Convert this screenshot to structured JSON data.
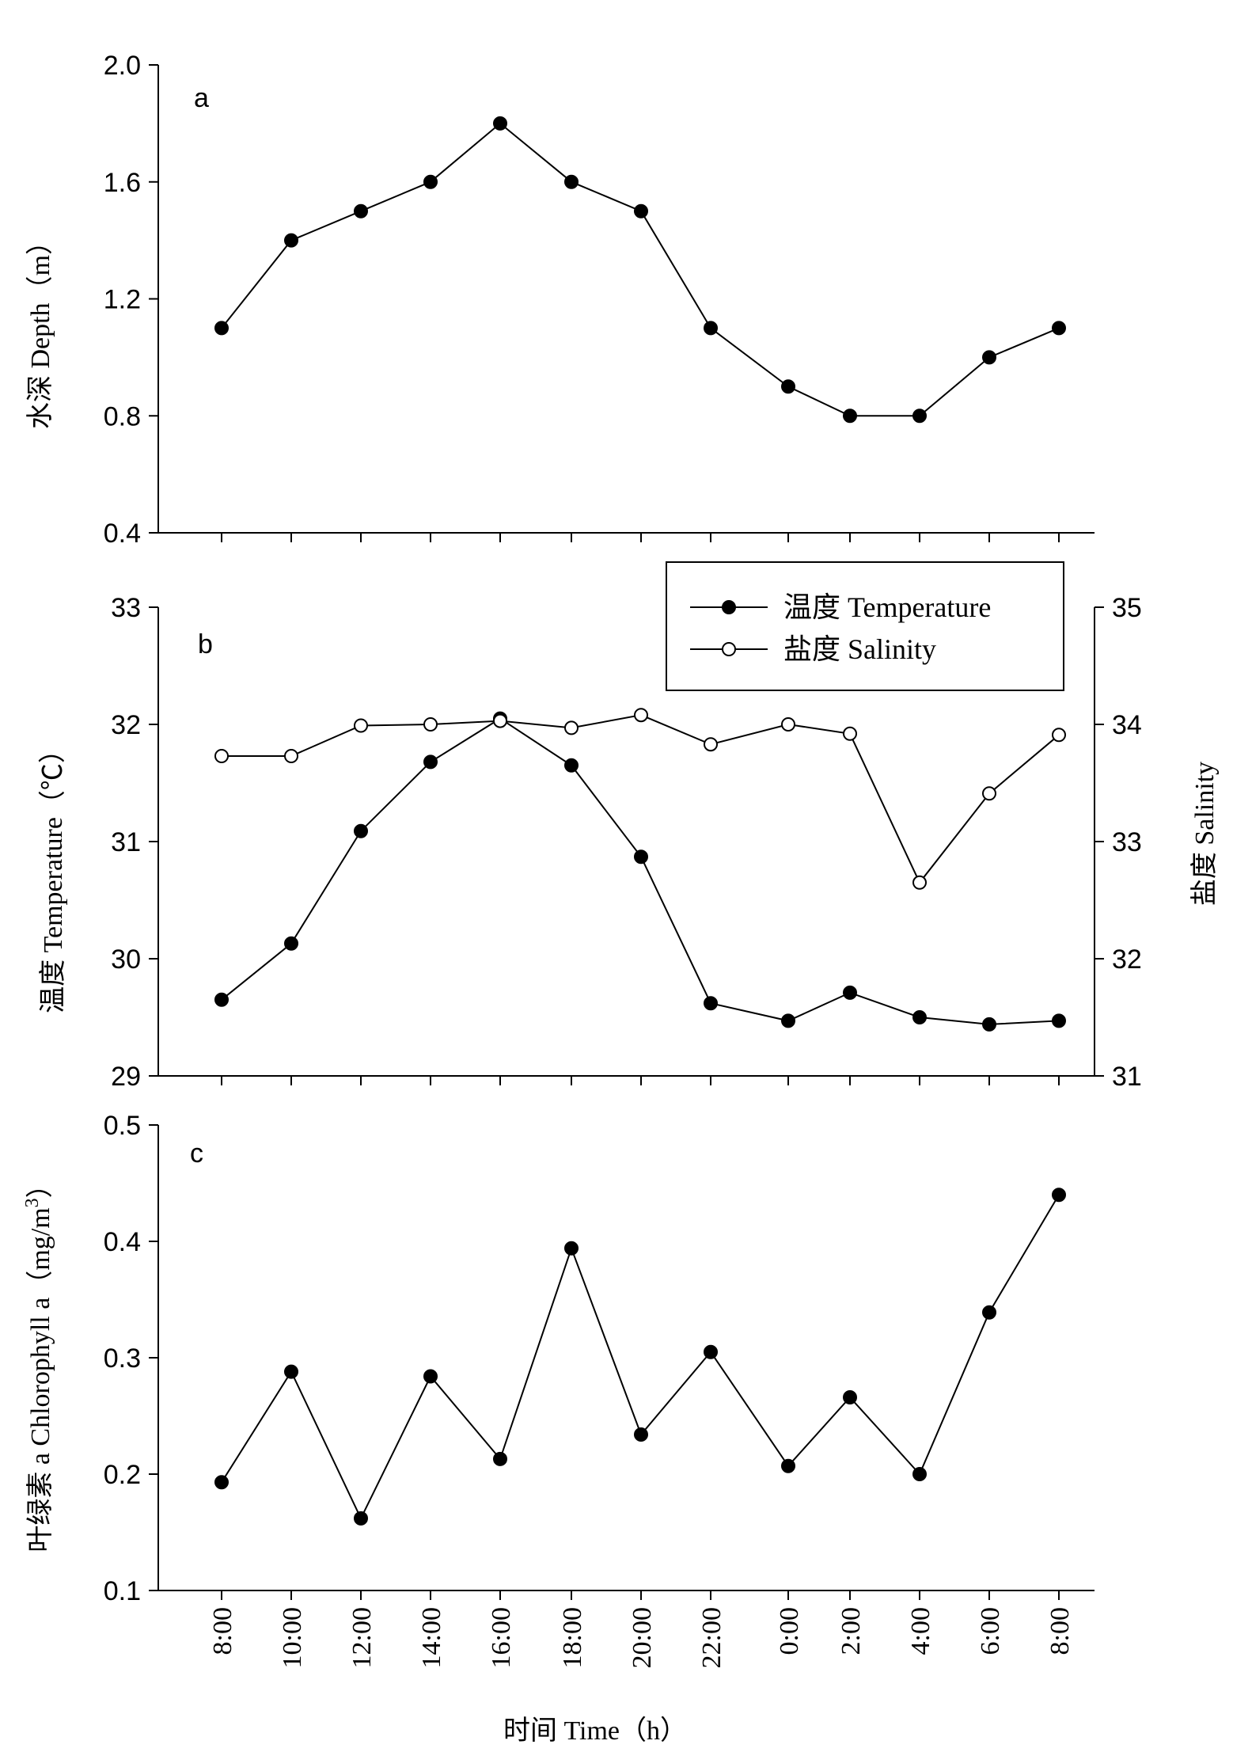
{
  "chart_data": [
    {
      "type": "line",
      "panel_label": "a",
      "ylabel": "水深 Depth（m）",
      "ylim": [
        0.4,
        2.0
      ],
      "yticks": [
        "0.4",
        "0.8",
        "1.2",
        "1.6",
        "2.0"
      ],
      "series": [
        {
          "values": [
            1.1,
            1.4,
            1.5,
            1.6,
            1.8,
            1.6,
            1.5,
            1.1,
            0.9,
            0.8,
            0.8,
            1.0,
            1.1
          ],
          "marker": "filled"
        }
      ]
    },
    {
      "type": "line",
      "panel_label": "b",
      "ylabel": "温度 Temperature（℃）",
      "ylim": [
        29,
        33
      ],
      "yticks": [
        "29",
        "30",
        "31",
        "32",
        "33"
      ],
      "y2label": "盐度 Salinity",
      "y2lim": [
        31,
        35
      ],
      "y2ticks": [
        "31",
        "32",
        "33",
        "34",
        "35"
      ],
      "legend_position": "top-right",
      "series": [
        {
          "name": "温度 Temperature",
          "axis": "left",
          "marker": "filled",
          "values": [
            29.65,
            30.13,
            31.09,
            31.68,
            32.05,
            31.65,
            30.87,
            29.62,
            29.47,
            29.71,
            29.5,
            29.44,
            29.47
          ]
        },
        {
          "name": "盐度 Salinity",
          "axis": "right",
          "marker": "open",
          "values": [
            33.73,
            33.73,
            33.99,
            34.0,
            34.03,
            33.97,
            34.08,
            33.83,
            34.0,
            33.92,
            32.65,
            33.41,
            33.91
          ]
        }
      ]
    },
    {
      "type": "line",
      "panel_label": "c",
      "ylabel": "叶绿素 a  Chlorophyll a（mg/m",
      "ylabel_sup": "3",
      "ylabel_end": "）",
      "ylim": [
        0.1,
        0.5
      ],
      "yticks": [
        "0.1",
        "0.2",
        "0.3",
        "0.4",
        "0.5"
      ],
      "series": [
        {
          "values": [
            0.193,
            0.288,
            0.162,
            0.284,
            0.213,
            0.394,
            0.234,
            0.305,
            0.207,
            0.266,
            0.2,
            0.339,
            0.44
          ],
          "marker": "filled"
        }
      ]
    }
  ],
  "x_axis": {
    "ticks": [
      "8:00",
      "10:00",
      "12:00",
      "14:00",
      "16:00",
      "18:00",
      "20:00",
      "22:00",
      "0:00",
      "2:00",
      "4:00",
      "6:00",
      "8:00"
    ],
    "label": "时间  Time（h）"
  },
  "colors": {
    "line": "#000000",
    "marker_fill": "#000000",
    "open_marker_fill": "#ffffff",
    "background": "#ffffff"
  }
}
